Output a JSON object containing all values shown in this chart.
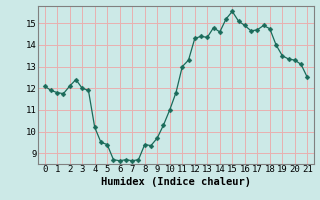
{
  "x": [
    0,
    0.5,
    1,
    1.5,
    2,
    2.5,
    3,
    3.5,
    4,
    4.5,
    5,
    5.5,
    6,
    6.5,
    7,
    7.5,
    8,
    8.5,
    9,
    9.5,
    10,
    10.5,
    11,
    11.5,
    12,
    12.5,
    13,
    13.5,
    14,
    14.5,
    15,
    15.5,
    16,
    16.5,
    17,
    17.5,
    18,
    18.5,
    19,
    19.5,
    20,
    20.5,
    21
  ],
  "y": [
    12.1,
    11.9,
    11.8,
    11.75,
    12.1,
    12.4,
    12.0,
    11.9,
    10.2,
    9.5,
    9.4,
    8.7,
    8.65,
    8.7,
    8.65,
    8.7,
    9.4,
    9.35,
    9.7,
    10.3,
    11.0,
    11.8,
    13.0,
    13.3,
    14.3,
    14.4,
    14.35,
    14.8,
    14.6,
    15.2,
    15.55,
    15.1,
    14.9,
    14.65,
    14.7,
    14.9,
    14.75,
    14.0,
    13.5,
    13.35,
    13.3,
    13.1,
    12.5
  ],
  "bg_color": "#cce9e7",
  "line_color": "#1a6b5a",
  "marker_color": "#1a6b5a",
  "grid_color": "#e8b0b0",
  "axis_bg": "#cce9e7",
  "spine_color": "#808080",
  "xlabel": "Humidex (Indice chaleur)",
  "xlim": [
    -0.5,
    21.5
  ],
  "ylim": [
    8.5,
    15.8
  ],
  "yticks": [
    9,
    10,
    11,
    12,
    13,
    14,
    15
  ],
  "xticks": [
    0,
    1,
    2,
    3,
    4,
    5,
    6,
    7,
    8,
    9,
    10,
    11,
    12,
    13,
    14,
    15,
    16,
    17,
    18,
    19,
    20,
    21
  ],
  "linewidth": 0.9,
  "markersize": 2.5,
  "xlabel_fontsize": 7.5,
  "tick_fontsize": 6.5
}
